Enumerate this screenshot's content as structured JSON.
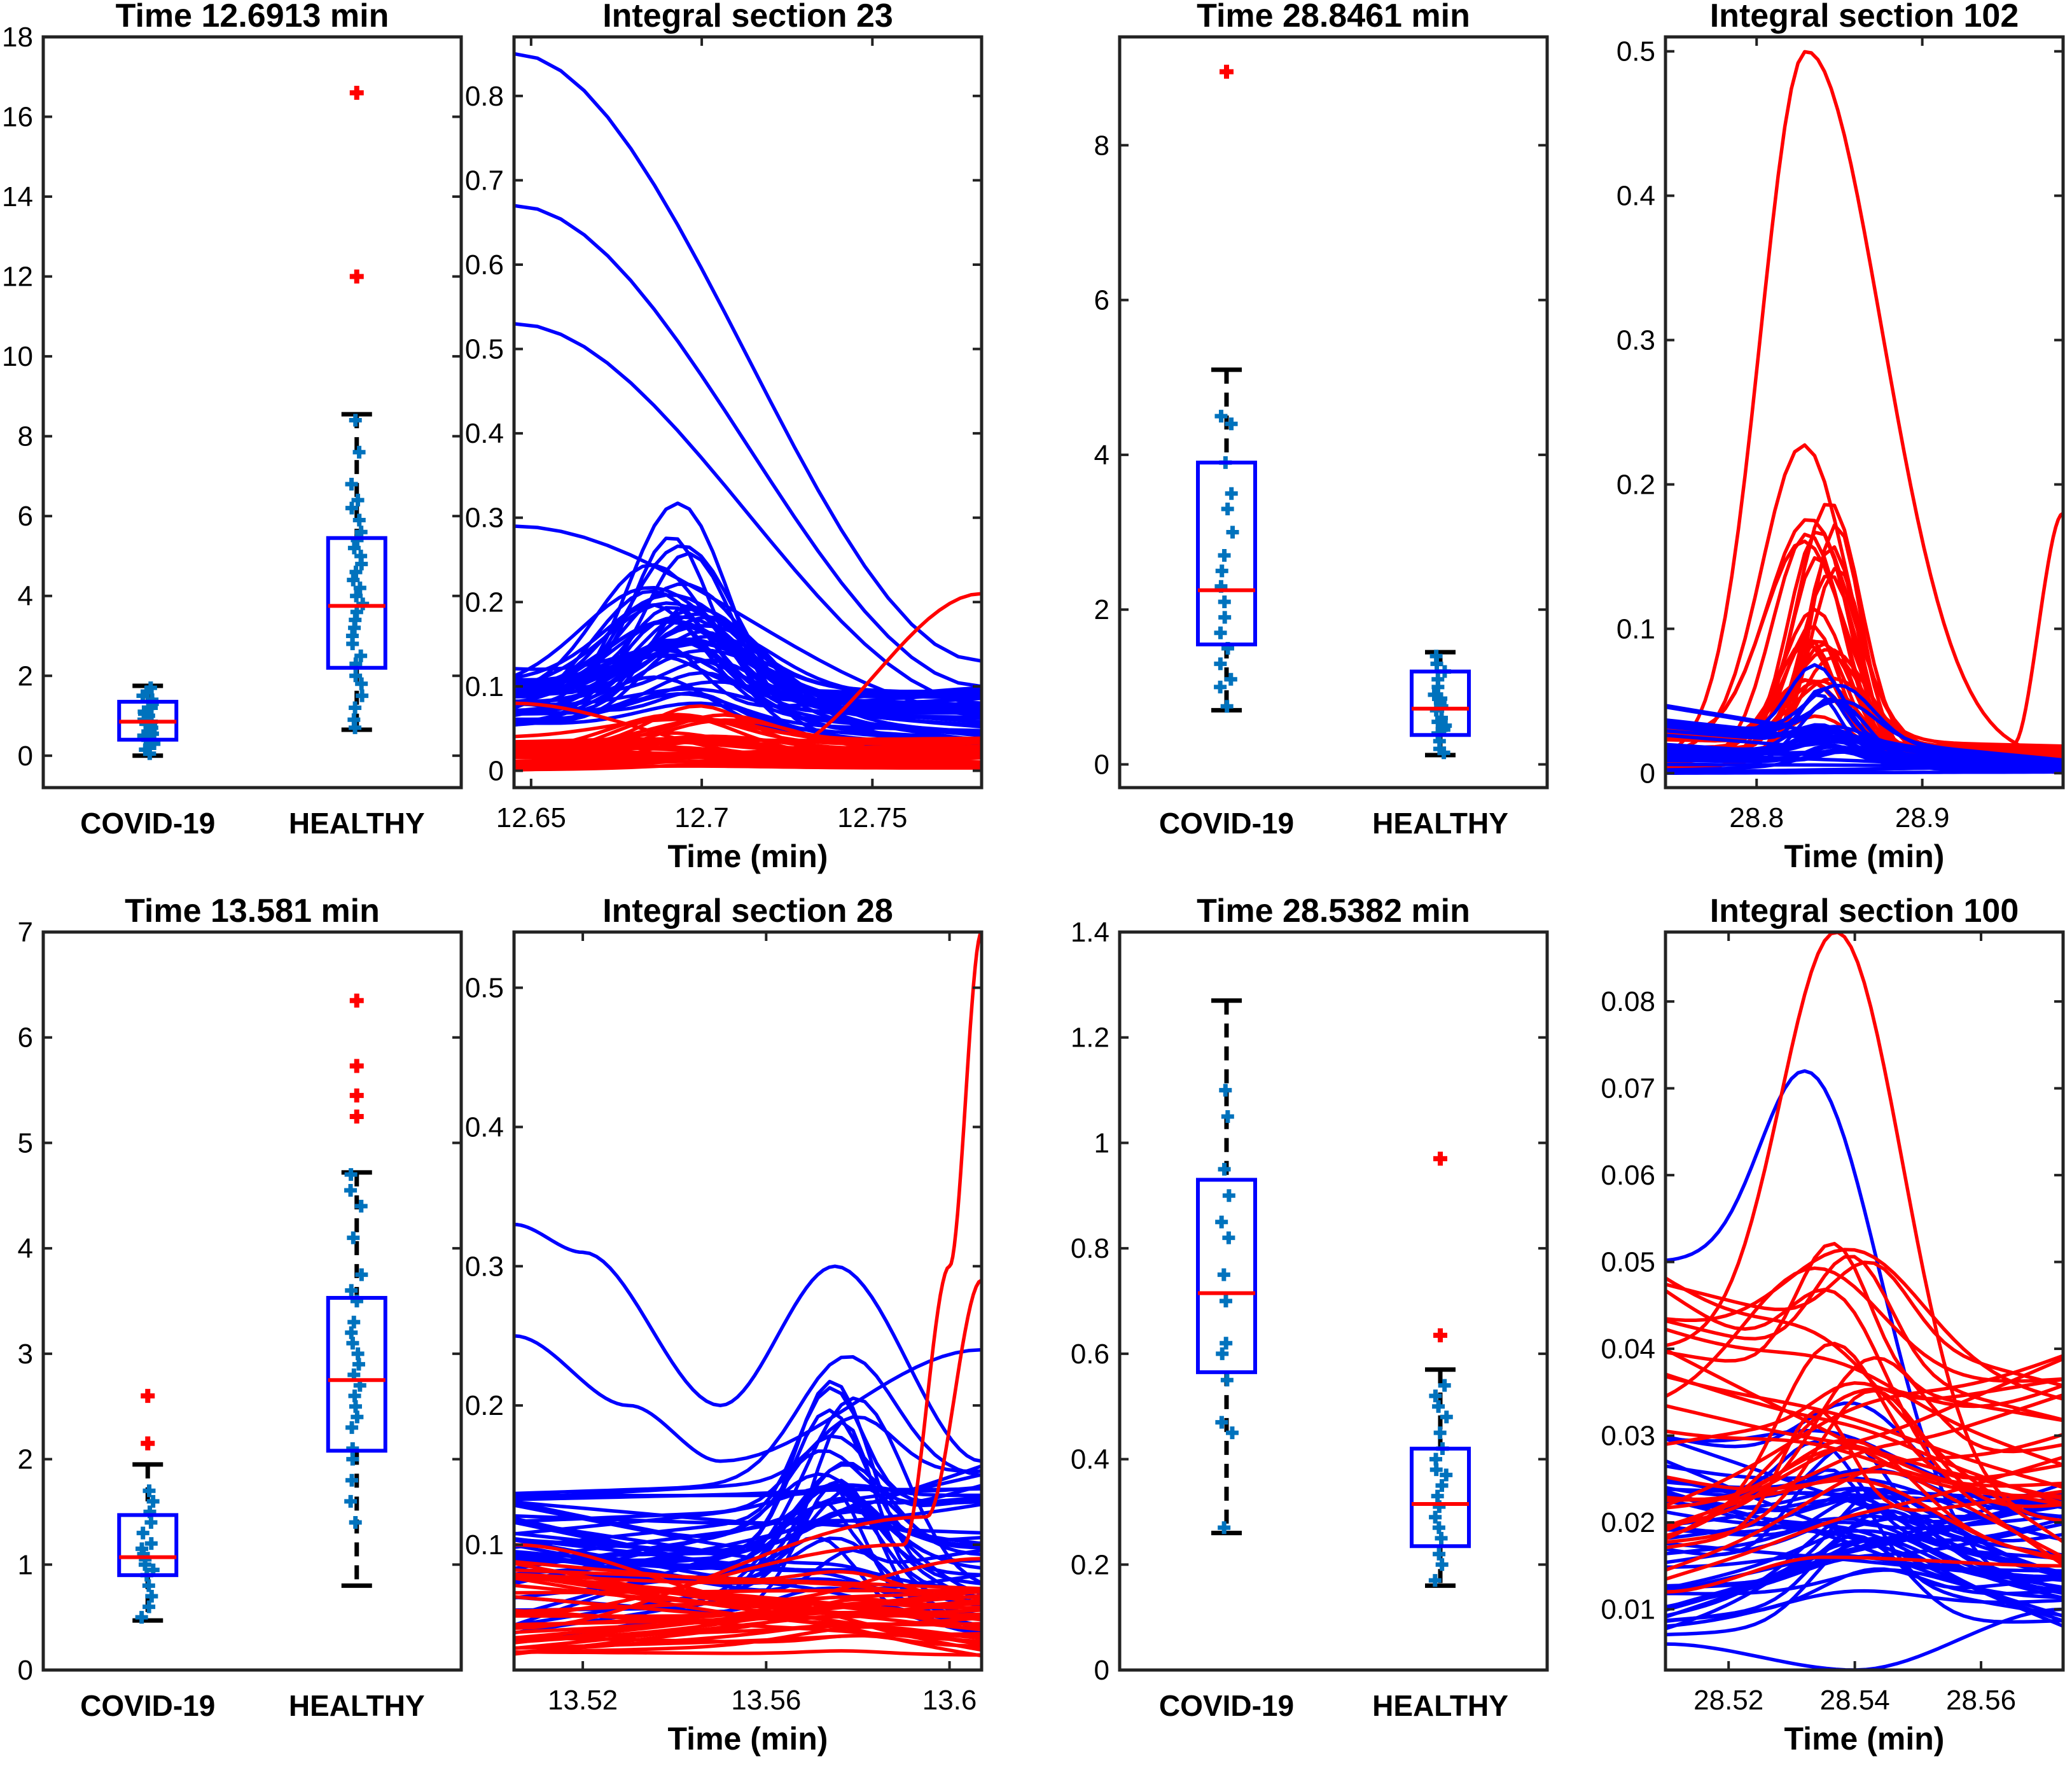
{
  "colors": {
    "covid": "#ff0000",
    "healthy": "#0000ff",
    "points": "#0072bd",
    "median": "#ff0000",
    "box": "#0000ff",
    "whisker": "#000000",
    "outlier": "#ff0000"
  },
  "chart_data": [
    {
      "id": "p1",
      "type": "box",
      "title": "Time 12.6913 min",
      "categories": [
        "COVID-19",
        "HEALTHY"
      ],
      "ylim": [
        -0.8,
        18
      ],
      "yticks": [
        0,
        2,
        4,
        6,
        8,
        10,
        12,
        14,
        16,
        18
      ],
      "boxes": [
        {
          "q1": 0.4,
          "median": 0.85,
          "q3": 1.35,
          "wlow": 0.0,
          "whigh": 1.75,
          "outliers": [],
          "points": [
            0.05,
            0.15,
            0.2,
            0.3,
            0.35,
            0.45,
            0.5,
            0.55,
            0.6,
            0.7,
            0.75,
            0.8,
            0.85,
            0.9,
            1.0,
            1.05,
            1.1,
            1.2,
            1.3,
            1.4,
            1.5,
            1.6,
            1.7
          ]
        },
        {
          "q1": 2.2,
          "median": 3.75,
          "q3": 5.45,
          "wlow": 0.65,
          "whigh": 8.55,
          "outliers": [
            12.0,
            16.6
          ],
          "points": [
            0.7,
            0.9,
            1.2,
            1.5,
            1.8,
            2.0,
            2.3,
            2.5,
            2.8,
            3.0,
            3.2,
            3.4,
            3.6,
            3.8,
            4.0,
            4.2,
            4.4,
            4.6,
            4.8,
            5.0,
            5.2,
            5.4,
            5.6,
            5.9,
            6.2,
            6.4,
            6.8,
            7.6,
            8.4
          ]
        }
      ]
    },
    {
      "id": "p2",
      "type": "line",
      "title": "Integral section 23",
      "xlabel": "Time (min)",
      "xlim": [
        12.645,
        12.782
      ],
      "ylim": [
        -0.02,
        0.87
      ],
      "xticks": [
        12.65,
        12.7,
        12.75
      ],
      "xticklabels": [
        "12.65",
        "12.7",
        "12.75"
      ],
      "yticks": [
        0,
        0.1,
        0.2,
        0.3,
        0.4,
        0.5,
        0.6,
        0.7,
        0.8
      ],
      "yticklabels": [
        "0",
        "0.1",
        "0.2",
        "0.3",
        "0.4",
        "0.5",
        "0.6",
        "0.7",
        "0.8"
      ],
      "series": [
        {
          "name": "HEALTHY",
          "count": 42,
          "base": [
            0.05,
            0.12
          ],
          "peak": [
            0.03,
            0.28
          ],
          "center": 12.695,
          "width": 0.025,
          "end": [
            0.02,
            0.1
          ],
          "special": [
            {
              "x": [
                12.645,
                12.782
              ],
              "y": [
                0.85,
                0.13
              ],
              "curve": 0.05
            },
            {
              "x": [
                12.645,
                12.782
              ],
              "y": [
                0.67,
                0.1
              ]
            },
            {
              "x": [
                12.645,
                12.782
              ],
              "y": [
                0.53,
                0.08
              ]
            },
            {
              "x": [
                12.645,
                12.782
              ],
              "y": [
                0.29,
                0.07
              ]
            }
          ]
        },
        {
          "name": "COVID-19",
          "count": 32,
          "base": [
            0.0,
            0.04
          ],
          "peak": [
            0.0,
            0.06
          ],
          "center": 12.695,
          "width": 0.03,
          "end": [
            0.0,
            0.04
          ],
          "special": [
            {
              "x": [
                12.645,
                12.72,
                12.782
              ],
              "y": [
                0.08,
                0.02,
                0.21
              ],
              "curve": 0
            }
          ]
        }
      ]
    },
    {
      "id": "p3",
      "type": "box",
      "title": "Time 28.8461 min",
      "categories": [
        "COVID-19",
        "HEALTHY"
      ],
      "ylim": [
        -0.3,
        9.4
      ],
      "yticks": [
        0,
        2,
        4,
        6,
        8
      ],
      "boxes": [
        {
          "q1": 1.55,
          "median": 2.25,
          "q3": 3.9,
          "wlow": 0.7,
          "whigh": 5.1,
          "outliers": [
            8.95
          ],
          "points": [
            0.75,
            1.0,
            1.1,
            1.3,
            1.5,
            1.7,
            1.9,
            2.1,
            2.3,
            2.5,
            2.7,
            3.0,
            3.3,
            3.5,
            3.9,
            4.4,
            4.5
          ]
        },
        {
          "q1": 0.38,
          "median": 0.72,
          "q3": 1.2,
          "wlow": 0.12,
          "whigh": 1.45,
          "outliers": [],
          "points": [
            0.15,
            0.2,
            0.3,
            0.4,
            0.45,
            0.5,
            0.55,
            0.6,
            0.7,
            0.75,
            0.8,
            0.85,
            0.9,
            1.0,
            1.1,
            1.2,
            1.3,
            1.4
          ]
        }
      ]
    },
    {
      "id": "p4",
      "type": "line",
      "title": "Integral section 102",
      "xlabel": "Time (min)",
      "xlim": [
        28.745,
        28.985
      ],
      "ylim": [
        -0.01,
        0.51
      ],
      "xticks": [
        28.8,
        28.9
      ],
      "xticklabels": [
        "28.8",
        "28.9"
      ],
      "yticks": [
        0,
        0.1,
        0.2,
        0.3,
        0.4,
        0.5
      ],
      "yticklabels": [
        "0",
        "0.1",
        "0.2",
        "0.3",
        "0.4",
        "0.5"
      ],
      "series": [
        {
          "name": "COVID-19",
          "count": 24,
          "base": [
            0.0,
            0.03
          ],
          "peak": [
            0.03,
            0.22
          ],
          "center": 28.84,
          "width": 0.03,
          "end": [
            0.0,
            0.02
          ],
          "special": [
            {
              "x": [
                28.745,
                28.83,
                28.985
              ],
              "y": [
                0.01,
                0.5,
                0.01
              ],
              "peak": true
            },
            {
              "x": [
                28.955,
                28.985
              ],
              "y": [
                0.02,
                0.18
              ],
              "curve": 0
            }
          ]
        },
        {
          "name": "HEALTHY",
          "count": 30,
          "base": [
            0.0,
            0.05
          ],
          "peak": [
            0.0,
            0.08
          ],
          "center": 28.845,
          "width": 0.025,
          "end": [
            0.0,
            0.01
          ],
          "special": []
        }
      ]
    },
    {
      "id": "p5",
      "type": "box",
      "title": "Time 13.581 min",
      "categories": [
        "COVID-19",
        "HEALTHY"
      ],
      "ylim": [
        0,
        7
      ],
      "yticks": [
        0,
        1,
        2,
        3,
        4,
        5,
        6,
        7
      ],
      "boxes": [
        {
          "q1": 0.9,
          "median": 1.07,
          "q3": 1.47,
          "wlow": 0.47,
          "whigh": 1.95,
          "outliers": [
            2.15,
            2.6
          ],
          "points": [
            0.5,
            0.6,
            0.7,
            0.8,
            0.9,
            0.95,
            1.0,
            1.05,
            1.1,
            1.15,
            1.2,
            1.3,
            1.4,
            1.5,
            1.6,
            1.7
          ]
        },
        {
          "q1": 2.08,
          "median": 2.75,
          "q3": 3.53,
          "wlow": 0.8,
          "whigh": 4.72,
          "outliers": [
            5.25,
            5.45,
            5.73,
            6.35
          ],
          "points": [
            1.4,
            1.6,
            1.8,
            2.0,
            2.1,
            2.3,
            2.4,
            2.5,
            2.6,
            2.7,
            2.8,
            2.9,
            3.0,
            3.1,
            3.2,
            3.3,
            3.5,
            3.6,
            3.75,
            4.1,
            4.4,
            4.55,
            4.7
          ]
        }
      ]
    },
    {
      "id": "p6",
      "type": "line",
      "title": "Integral section 28",
      "xlabel": "Time (min)",
      "xlim": [
        13.505,
        13.607
      ],
      "ylim": [
        0.01,
        0.54
      ],
      "xticks": [
        13.52,
        13.56,
        13.6
      ],
      "xticklabels": [
        "13.52",
        "13.56",
        "13.6"
      ],
      "yticks": [
        0.1,
        0.2,
        0.3,
        0.4,
        0.5
      ],
      "yticklabels": [
        "0.1",
        "0.2",
        "0.3",
        "0.4",
        "0.5"
      ],
      "series": [
        {
          "name": "HEALTHY",
          "count": 40,
          "base": [
            0.03,
            0.14
          ],
          "peak": [
            0.0,
            0.16
          ],
          "center": 13.575,
          "width": 0.014,
          "end": [
            0.03,
            0.16
          ],
          "special": [
            {
              "x": [
                13.505,
                13.52,
                13.55,
                13.575,
                13.607
              ],
              "y": [
                0.33,
                0.31,
                0.2,
                0.3,
                0.16
              ],
              "curve": 0
            },
            {
              "x": [
                13.505,
                13.53,
                13.55,
                13.607
              ],
              "y": [
                0.25,
                0.2,
                0.16,
                0.24
              ],
              "curve": 0
            }
          ]
        },
        {
          "name": "COVID-19",
          "count": 30,
          "base": [
            0.02,
            0.09
          ],
          "peak": [
            0.0,
            0.02
          ],
          "center": 13.575,
          "width": 0.02,
          "end": [
            0.02,
            0.07
          ],
          "special": [
            {
              "x": [
                13.505,
                13.59,
                13.6,
                13.607
              ],
              "y": [
                0.05,
                0.1,
                0.3,
                0.54
              ],
              "curve": 0
            },
            {
              "x": [
                13.505,
                13.595,
                13.607
              ],
              "y": [
                0.04,
                0.12,
                0.29
              ],
              "curve": 0
            },
            {
              "x": [
                13.505,
                13.56,
                13.607
              ],
              "y": [
                0.1,
                0.06,
                0.09
              ],
              "curve": 0
            }
          ]
        }
      ]
    },
    {
      "id": "p7",
      "type": "box",
      "title": "Time 28.5382 min",
      "categories": [
        "COVID-19",
        "HEALTHY"
      ],
      "ylim": [
        0,
        1.4
      ],
      "yticks": [
        0,
        0.2,
        0.4,
        0.6,
        0.8,
        1,
        1.2,
        1.4
      ],
      "yticklabels": [
        "0",
        "0.2",
        "0.4",
        "0.6",
        "0.8",
        "1",
        "1.2",
        "1.4"
      ],
      "boxes": [
        {
          "q1": 0.565,
          "median": 0.715,
          "q3": 0.93,
          "wlow": 0.26,
          "whigh": 1.27,
          "outliers": [],
          "points": [
            0.27,
            0.45,
            0.47,
            0.55,
            0.6,
            0.62,
            0.7,
            0.75,
            0.82,
            0.85,
            0.9,
            0.95,
            1.05,
            1.1
          ]
        },
        {
          "q1": 0.235,
          "median": 0.315,
          "q3": 0.42,
          "wlow": 0.16,
          "whigh": 0.57,
          "outliers": [
            0.635,
            0.97
          ],
          "points": [
            0.17,
            0.2,
            0.22,
            0.25,
            0.27,
            0.29,
            0.31,
            0.33,
            0.35,
            0.37,
            0.38,
            0.4,
            0.42,
            0.45,
            0.48,
            0.5,
            0.52,
            0.54
          ]
        }
      ]
    },
    {
      "id": "p8",
      "type": "line",
      "title": "Integral section 100",
      "xlabel": "Time (min)",
      "xlim": [
        28.51,
        28.573
      ],
      "ylim": [
        0.003,
        0.088
      ],
      "xticks": [
        28.52,
        28.54,
        28.56
      ],
      "xticklabels": [
        "28.52",
        "28.54",
        "28.56"
      ],
      "yticks": [
        0.01,
        0.02,
        0.03,
        0.04,
        0.05,
        0.06,
        0.07,
        0.08
      ],
      "yticklabels": [
        "0.01",
        "0.02",
        "0.03",
        "0.04",
        "0.05",
        "0.06",
        "0.07",
        "0.08"
      ],
      "series": [
        {
          "name": "HEALTHY",
          "count": 40,
          "base": [
            0.006,
            0.03
          ],
          "peak": [
            0.0,
            0.015
          ],
          "center": 28.54,
          "width": 0.014,
          "end": [
            0.008,
            0.025
          ],
          "special": [
            {
              "x": [
                28.51,
                28.532,
                28.573
              ],
              "y": [
                0.05,
                0.072,
                0.012
              ],
              "peak": true
            },
            {
              "x": [
                28.51,
                28.54,
                28.573
              ],
              "y": [
                0.006,
                0.003,
                0.01
              ],
              "curve": 0
            }
          ]
        },
        {
          "name": "COVID-19",
          "count": 28,
          "base": [
            0.012,
            0.05
          ],
          "peak": [
            0.0,
            0.03
          ],
          "center": 28.538,
          "width": 0.013,
          "end": [
            0.015,
            0.04
          ],
          "special": [
            {
              "x": [
                28.51,
                28.537,
                28.573
              ],
              "y": [
                0.04,
                0.088,
                0.02
              ],
              "peak": true
            },
            {
              "x": [
                28.51,
                28.535,
                28.573
              ],
              "y": [
                0.012,
                0.016,
                0.015
              ],
              "curve": 0
            }
          ]
        }
      ]
    }
  ]
}
